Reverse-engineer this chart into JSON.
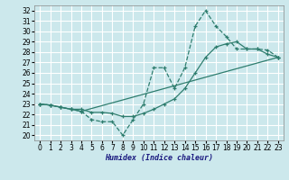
{
  "xlabel": "Humidex (Indice chaleur)",
  "xlim": [
    -0.5,
    23.5
  ],
  "ylim": [
    19.5,
    32.5
  ],
  "xticks": [
    0,
    1,
    2,
    3,
    4,
    5,
    6,
    7,
    8,
    9,
    10,
    11,
    12,
    13,
    14,
    15,
    16,
    17,
    18,
    19,
    20,
    21,
    22,
    23
  ],
  "yticks": [
    20,
    21,
    22,
    23,
    24,
    25,
    26,
    27,
    28,
    29,
    30,
    31,
    32
  ],
  "bg_color": "#cce8ec",
  "grid_color": "#ffffff",
  "line_color": "#2e7d6e",
  "line1_x": [
    0,
    1,
    2,
    3,
    4,
    5,
    6,
    7,
    8,
    9,
    10,
    11,
    12,
    13,
    14,
    15,
    16,
    17,
    18,
    19,
    20,
    21,
    22,
    23
  ],
  "line1_y": [
    23,
    22.9,
    22.7,
    22.5,
    22.5,
    22.2,
    22.2,
    22.1,
    21.8,
    21.8,
    22.1,
    22.5,
    23.0,
    23.5,
    24.5,
    26.0,
    27.5,
    28.5,
    28.8,
    29.0,
    28.3,
    28.3,
    27.8,
    27.5
  ],
  "line2_x": [
    0,
    1,
    2,
    3,
    4,
    5,
    6,
    7,
    8,
    9,
    10,
    11,
    12,
    13,
    14,
    15,
    16,
    17,
    18,
    19,
    20,
    21,
    22,
    23
  ],
  "line2_y": [
    23,
    22.9,
    22.7,
    22.5,
    22.3,
    21.5,
    21.3,
    21.3,
    20.0,
    21.5,
    23.0,
    26.5,
    26.5,
    24.5,
    26.5,
    30.5,
    32.0,
    30.5,
    29.5,
    28.3,
    28.3,
    28.3,
    28.2,
    27.5
  ],
  "line3_x": [
    0,
    1,
    2,
    3,
    4,
    23
  ],
  "line3_y": [
    23,
    22.9,
    22.7,
    22.5,
    22.3,
    27.5
  ]
}
